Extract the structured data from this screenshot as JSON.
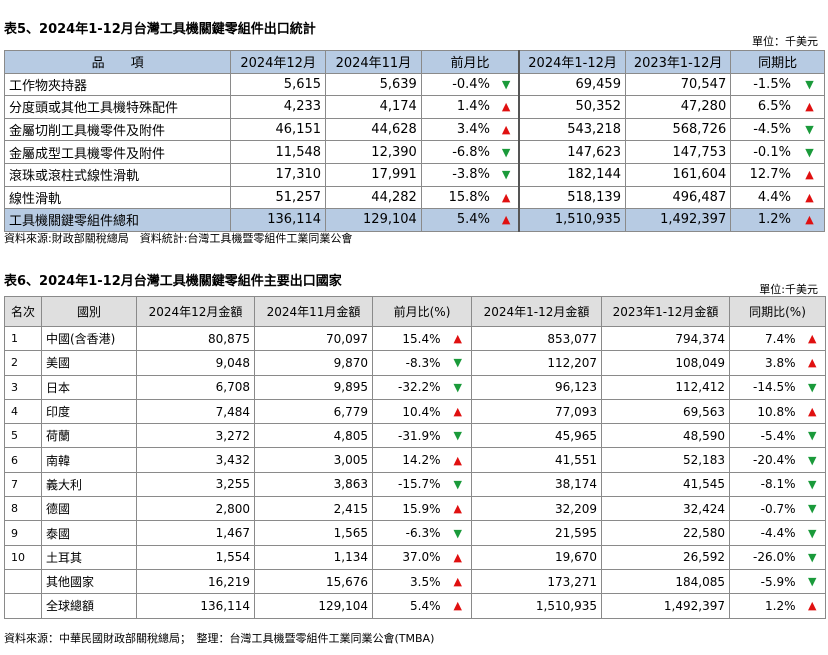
{
  "table1": {
    "title": "表5、2024年1-12月台灣工具機關鍵零組件出口統計",
    "unit": "單位：千美元",
    "headers": [
      "品　　項",
      "2024年12月",
      "2024年11月",
      "前月比",
      "2024年1-12月",
      "2023年1-12月",
      "同期比"
    ],
    "rows": [
      {
        "item": "工作物夾持器",
        "m12": "5,615",
        "m11": "5,639",
        "mom": "-0.4%",
        "mom_dir": "down",
        "y24": "69,459",
        "y23": "70,547",
        "yoy": "-1.5%",
        "yoy_dir": "down"
      },
      {
        "item": "分度頭或其他工具機特殊配件",
        "m12": "4,233",
        "m11": "4,174",
        "mom": "1.4%",
        "mom_dir": "up",
        "y24": "50,352",
        "y23": "47,280",
        "yoy": "6.5%",
        "yoy_dir": "up"
      },
      {
        "item": "金屬切削工具機零件及附件",
        "m12": "46,151",
        "m11": "44,628",
        "mom": "3.4%",
        "mom_dir": "up",
        "y24": "543,218",
        "y23": "568,726",
        "yoy": "-4.5%",
        "yoy_dir": "down"
      },
      {
        "item": "金屬成型工具機零件及附件",
        "m12": "11,548",
        "m11": "12,390",
        "mom": "-6.8%",
        "mom_dir": "down",
        "y24": "147,623",
        "y23": "147,753",
        "yoy": "-0.1%",
        "yoy_dir": "down"
      },
      {
        "item": "滾珠或滾柱式線性滑軌",
        "m12": "17,310",
        "m11": "17,991",
        "mom": "-3.8%",
        "mom_dir": "down",
        "y24": "182,144",
        "y23": "161,604",
        "yoy": "12.7%",
        "yoy_dir": "up"
      },
      {
        "item": "線性滑軌",
        "m12": "51,257",
        "m11": "44,282",
        "mom": "15.8%",
        "mom_dir": "up",
        "y24": "518,139",
        "y23": "496,487",
        "yoy": "4.4%",
        "yoy_dir": "up"
      }
    ],
    "total": {
      "item": "工具機關鍵零組件總和",
      "m12": "136,114",
      "m11": "129,104",
      "mom": "5.4%",
      "mom_dir": "up",
      "y24": "1,510,935",
      "y23": "1,492,397",
      "yoy": "1.2%",
      "yoy_dir": "up"
    },
    "source": "資料來源:財政部關稅總局　資料統計:台灣工具機暨零組件工業同業公會"
  },
  "table2": {
    "title": "表6、2024年1-12月台灣工具機關鍵零組件主要出口國家",
    "unit": "單位:千美元",
    "headers": [
      "名次",
      "國別",
      "2024年12月金額",
      "2024年11月金額",
      "前月比(%)",
      "2024年1-12月金額",
      "2023年1-12月金額",
      "同期比(%)"
    ],
    "rows": [
      {
        "rank": "1",
        "country": "中國(含香港)",
        "m12": "80,875",
        "m11": "70,097",
        "mom": "15.4%",
        "mom_dir": "up",
        "y24": "853,077",
        "y23": "794,374",
        "yoy": "7.4%",
        "yoy_dir": "up"
      },
      {
        "rank": "2",
        "country": "美國",
        "m12": "9,048",
        "m11": "9,870",
        "mom": "-8.3%",
        "mom_dir": "down",
        "y24": "112,207",
        "y23": "108,049",
        "yoy": "3.8%",
        "yoy_dir": "up"
      },
      {
        "rank": "3",
        "country": "日本",
        "m12": "6,708",
        "m11": "9,895",
        "mom": "-32.2%",
        "mom_dir": "down",
        "y24": "96,123",
        "y23": "112,412",
        "yoy": "-14.5%",
        "yoy_dir": "down"
      },
      {
        "rank": "4",
        "country": "印度",
        "m12": "7,484",
        "m11": "6,779",
        "mom": "10.4%",
        "mom_dir": "up",
        "y24": "77,093",
        "y23": "69,563",
        "yoy": "10.8%",
        "yoy_dir": "up"
      },
      {
        "rank": "5",
        "country": "荷蘭",
        "m12": "3,272",
        "m11": "4,805",
        "mom": "-31.9%",
        "mom_dir": "down",
        "y24": "45,965",
        "y23": "48,590",
        "yoy": "-5.4%",
        "yoy_dir": "down"
      },
      {
        "rank": "6",
        "country": "南韓",
        "m12": "3,432",
        "m11": "3,005",
        "mom": "14.2%",
        "mom_dir": "up",
        "y24": "41,551",
        "y23": "52,183",
        "yoy": "-20.4%",
        "yoy_dir": "down"
      },
      {
        "rank": "7",
        "country": "義大利",
        "m12": "3,255",
        "m11": "3,863",
        "mom": "-15.7%",
        "mom_dir": "down",
        "y24": "38,174",
        "y23": "41,545",
        "yoy": "-8.1%",
        "yoy_dir": "down"
      },
      {
        "rank": "8",
        "country": "德國",
        "m12": "2,800",
        "m11": "2,415",
        "mom": "15.9%",
        "mom_dir": "up",
        "y24": "32,209",
        "y23": "32,424",
        "yoy": "-0.7%",
        "yoy_dir": "down"
      },
      {
        "rank": "9",
        "country": "泰國",
        "m12": "1,467",
        "m11": "1,565",
        "mom": "-6.3%",
        "mom_dir": "down",
        "y24": "21,595",
        "y23": "22,580",
        "yoy": "-4.4%",
        "yoy_dir": "down"
      },
      {
        "rank": "10",
        "country": "土耳其",
        "m12": "1,554",
        "m11": "1,134",
        "mom": "37.0%",
        "mom_dir": "up",
        "y24": "19,670",
        "y23": "26,592",
        "yoy": "-26.0%",
        "yoy_dir": "down"
      },
      {
        "rank": "",
        "country": "其他國家",
        "m12": "16,219",
        "m11": "15,676",
        "mom": "3.5%",
        "mom_dir": "up",
        "y24": "173,271",
        "y23": "184,085",
        "yoy": "-5.9%",
        "yoy_dir": "down"
      },
      {
        "rank": "",
        "country": "全球總額",
        "m12": "136,114",
        "m11": "129,104",
        "mom": "5.4%",
        "mom_dir": "up",
        "y24": "1,510,935",
        "y23": "1,492,397",
        "yoy": "1.2%",
        "yoy_dir": "up"
      }
    ],
    "source": "資料來源：中華民國財政部關稅總局；　整理：台灣工具機暨零組件工業同業公會(TMBA)"
  },
  "arrows": {
    "up": "▲",
    "down": "▼"
  },
  "colors": {
    "up": "#e01010",
    "down": "#1a9a3a",
    "header_bg": "#b7cbe3"
  }
}
